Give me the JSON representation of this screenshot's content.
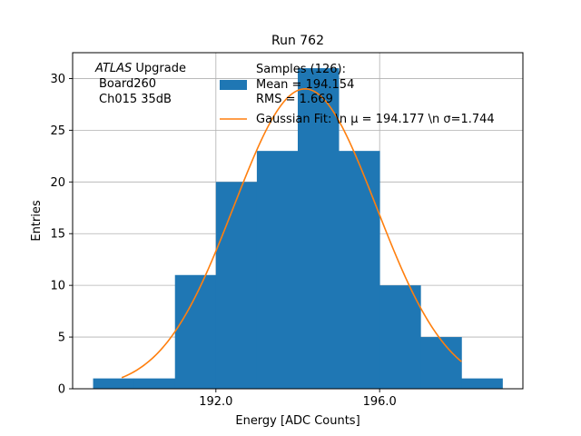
{
  "chart_data": {
    "type": "bar",
    "title": "Run 762",
    "xlabel": "Energy [ADC Counts]",
    "ylabel": "Entries",
    "xlim": [
      188.5,
      199.5
    ],
    "ylim": [
      0,
      32.5
    ],
    "x_ticks": [
      192.0,
      196.0
    ],
    "x_tick_labels": [
      "192.0",
      "196.0"
    ],
    "y_ticks": [
      0,
      5,
      10,
      15,
      20,
      25,
      30
    ],
    "y_tick_labels": [
      "0",
      "5",
      "10",
      "15",
      "20",
      "25",
      "30"
    ],
    "grid": true,
    "histogram": {
      "bin_edges": [
        189,
        190,
        191,
        192,
        193,
        194,
        195,
        196,
        197,
        198,
        199
      ],
      "counts": [
        1,
        1,
        11,
        20,
        23,
        31,
        23,
        10,
        5,
        1
      ],
      "color": "#1f77b4"
    },
    "fit": {
      "mean": 194.177,
      "sigma": 1.744,
      "amplitude": 29.0,
      "x_range": [
        189.7,
        198.0
      ],
      "color": "#ff7f0e"
    },
    "legend": {
      "placement": "top-right",
      "entries": [
        {
          "label": "Samples (126):\n Mean = 194.154\n RMS = 1.669",
          "color": "#1f77b4",
          "kind": "patch"
        },
        {
          "label": "Gaussian Fit: \\n μ = 194.177 \\n σ=1.744",
          "color": "#ff7f0e",
          "kind": "line"
        }
      ]
    },
    "annotation": {
      "atlas": "ATLAS",
      "upgrade": " Upgrade",
      "line2": "Board260",
      "line3": "Ch015 35dB"
    }
  }
}
